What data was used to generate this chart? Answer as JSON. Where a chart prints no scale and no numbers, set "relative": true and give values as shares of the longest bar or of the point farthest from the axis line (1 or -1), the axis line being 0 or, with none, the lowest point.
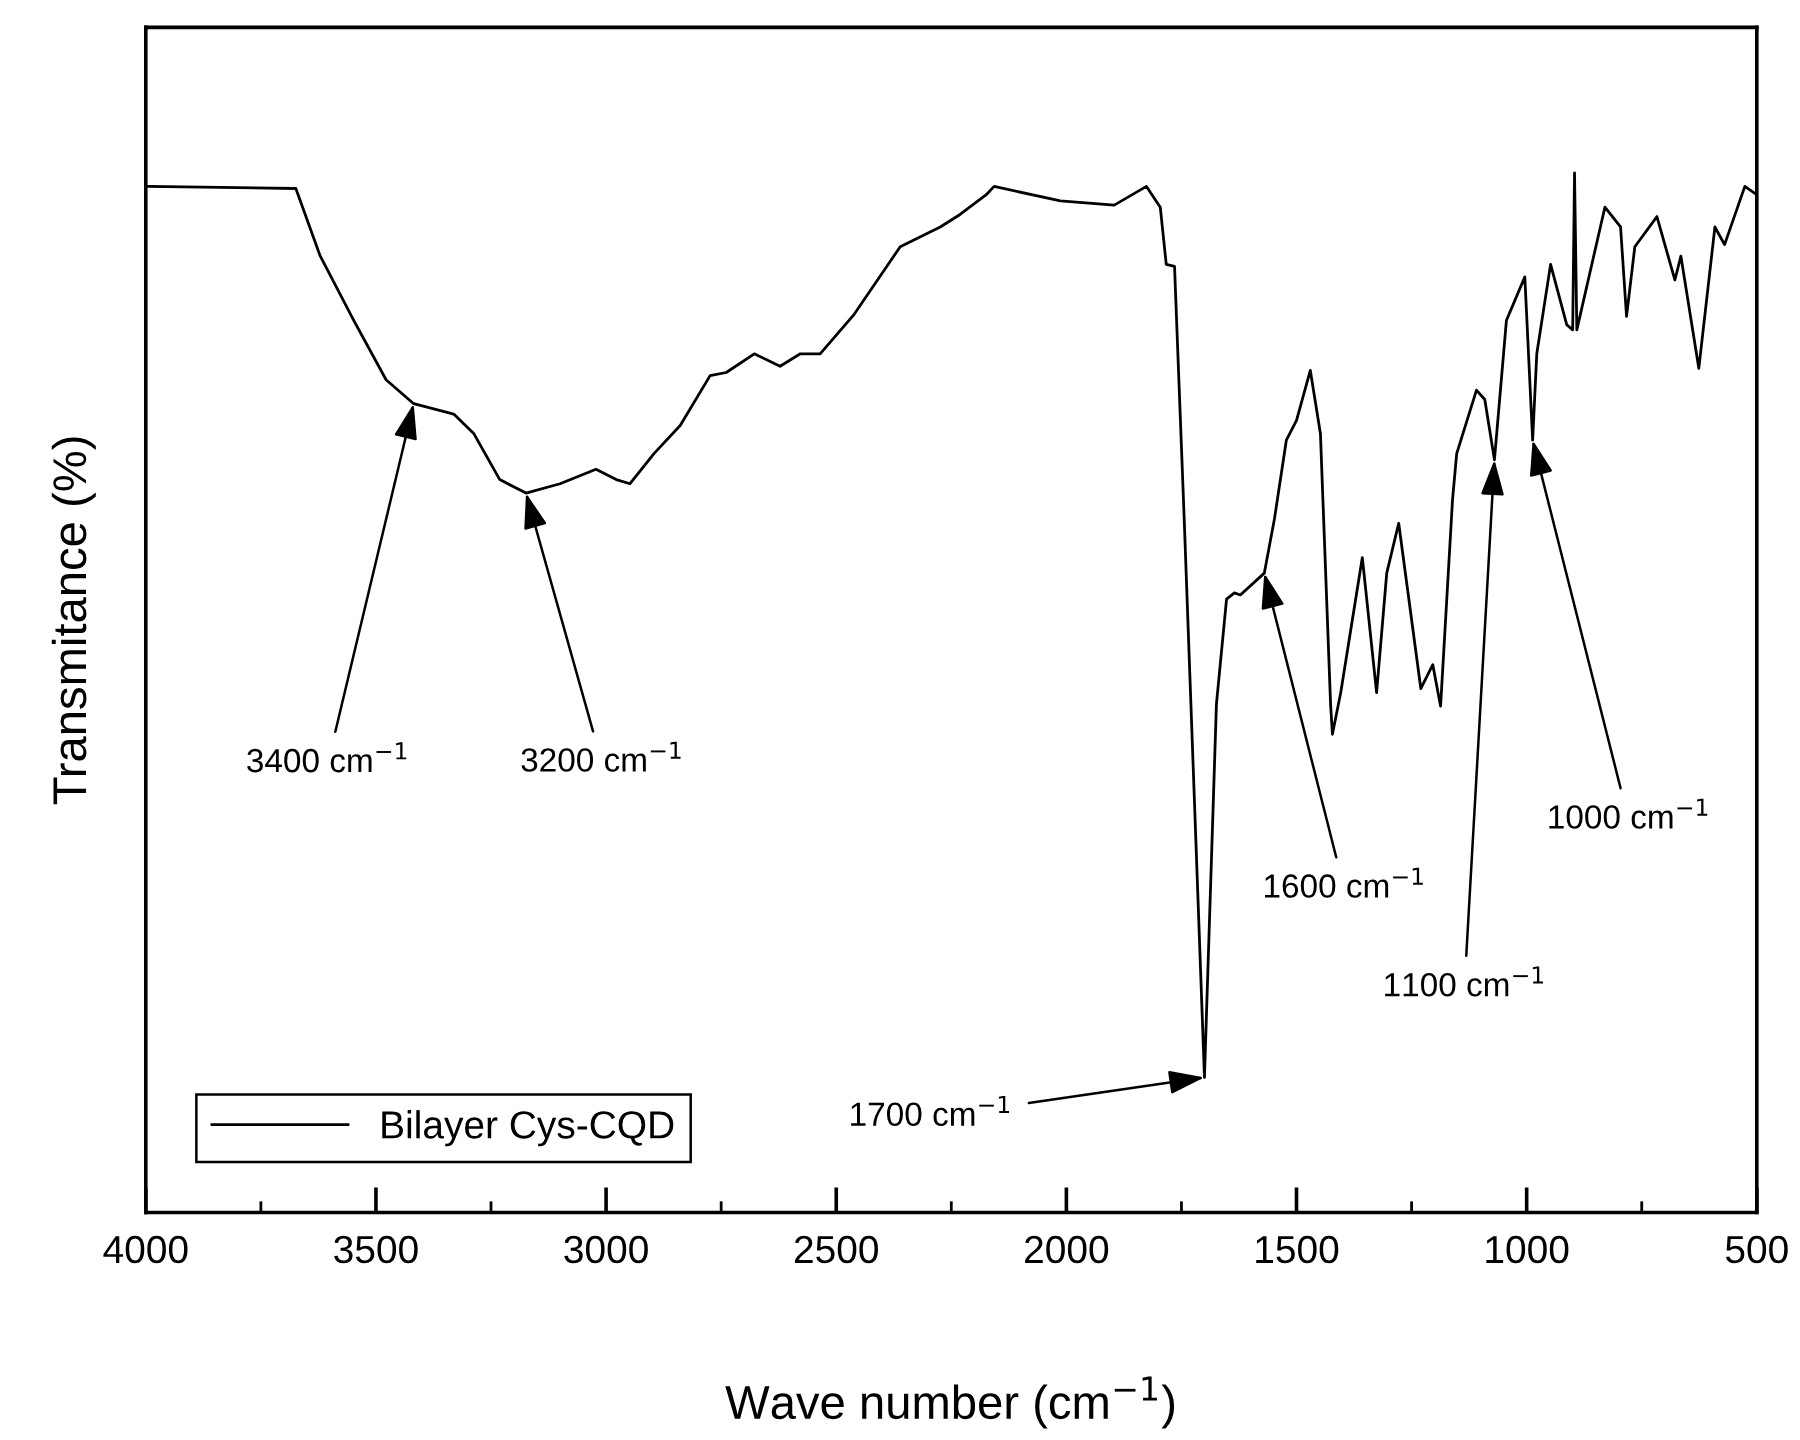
{
  "chart_data": {
    "type": "line",
    "xlabel": "Wave number (cm$^{−1}$)",
    "ylabel": "Transmitance (%)",
    "relative": true,
    "xlim": [
      4000,
      500
    ],
    "xticks": [
      4000,
      {
        "value": 3750,
        "label": null
      },
      3500,
      {
        "value": 3250,
        "label": null
      },
      3000,
      {
        "value": 2750,
        "label": null
      },
      2500,
      {
        "value": 2250,
        "label": null
      },
      2000,
      {
        "value": 1750,
        "label": null
      },
      1500,
      {
        "value": 1250,
        "label": null
      },
      1000,
      {
        "value": 750,
        "label": null
      },
      500
    ],
    "legend": "bottom left",
    "grid": false,
    "series": [
      {
        "name": "Bilayer Cys-CQD",
        "color": "#000000",
        "x": [
          3995,
          3674,
          3622,
          3548,
          3478,
          3418,
          3331,
          3287,
          3231,
          3174,
          3100,
          3022,
          2978,
          2948,
          2896,
          2839,
          2774,
          2739,
          2678,
          2622,
          2578,
          2535,
          2461,
          2361,
          2274,
          2231,
          2174,
          2157,
          2013,
          1896,
          1826,
          1796,
          1783,
          1765,
          1744,
          1700,
          1674,
          1652,
          1635,
          1622,
          1570,
          1548,
          1522,
          1500,
          1470,
          1448,
          1426,
          1422,
          1404,
          1357,
          1326,
          1304,
          1278,
          1230,
          1204,
          1187,
          1161,
          1152,
          1109,
          1091,
          1070,
          1044,
          1004,
          987,
          978,
          948,
          913,
          900,
          896,
          891,
          830,
          796,
          783,
          765,
          717,
          678,
          665,
          626,
          591,
          570,
          526,
          500
        ],
        "values": [
          0.987,
          0.985,
          0.921,
          0.858,
          0.801,
          0.778,
          0.768,
          0.749,
          0.705,
          0.692,
          0.701,
          0.715,
          0.705,
          0.701,
          0.73,
          0.757,
          0.805,
          0.808,
          0.826,
          0.814,
          0.826,
          0.826,
          0.864,
          0.929,
          0.948,
          0.96,
          0.979,
          0.987,
          0.973,
          0.969,
          0.987,
          0.967,
          0.912,
          0.91,
          0.667,
          0.13,
          0.489,
          0.59,
          0.596,
          0.594,
          0.615,
          0.667,
          0.743,
          0.762,
          0.81,
          0.749,
          0.489,
          0.46,
          0.5,
          0.63,
          0.5,
          0.615,
          0.663,
          0.504,
          0.527,
          0.487,
          0.686,
          0.73,
          0.791,
          0.782,
          0.724,
          0.858,
          0.9,
          0.743,
          0.826,
          0.912,
          0.854,
          0.849,
          1.0,
          0.849,
          0.967,
          0.948,
          0.862,
          0.929,
          0.958,
          0.897,
          0.92,
          0.812,
          0.948,
          0.931,
          0.987,
          0.979
        ]
      }
    ],
    "annotations": [
      {
        "text": "3400 cm$^{−1}$",
        "x": 3418,
        "y": 0.778
      },
      {
        "text": "3200 cm$^{−1}$",
        "x": 3174,
        "y": 0.692
      },
      {
        "text": "1700 cm$^{−1}$",
        "x": 1700,
        "y": 0.13
      },
      {
        "text": "1600 cm$^{−1}$",
        "x": 1570,
        "y": 0.615
      },
      {
        "text": "1100 cm$^{−1}$",
        "x": 1070,
        "y": 0.724
      },
      {
        "text": "1000 cm$^{−1}$",
        "x": 987,
        "y": 0.743
      }
    ]
  }
}
